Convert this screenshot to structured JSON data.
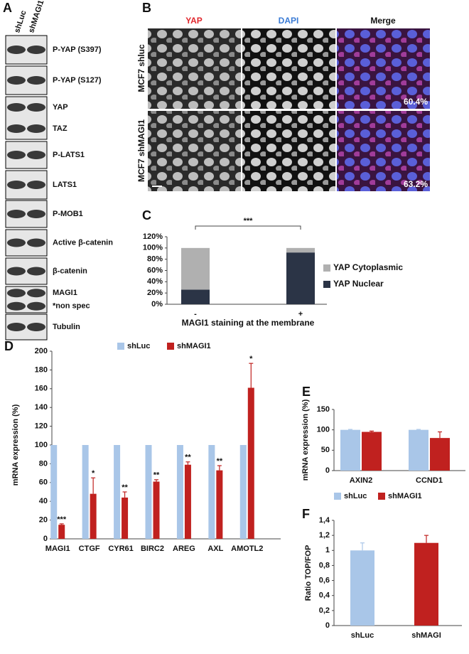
{
  "panel_letters": [
    "A",
    "B",
    "C",
    "D",
    "E",
    "F"
  ],
  "blot": {
    "lanes": [
      "shLuc",
      "shMAGI1"
    ],
    "boxes": [
      {
        "labels": [
          "P-YAP (S397)"
        ]
      },
      {
        "labels": [
          "P-YAP (S127)"
        ]
      },
      {
        "labels": [
          "YAP",
          "TAZ"
        ]
      },
      {
        "labels": [
          "P-LATS1"
        ]
      },
      {
        "labels": [
          "LATS1"
        ]
      },
      {
        "labels": [
          "P-MOB1"
        ]
      },
      {
        "labels": [
          "Active β-catenin"
        ]
      },
      {
        "labels": [
          "β-catenin"
        ]
      },
      {
        "labels": [
          "MAGI1",
          "*non spec"
        ]
      },
      {
        "labels": [
          "Tubulin"
        ]
      }
    ]
  },
  "microscopy": {
    "columns": [
      "YAP",
      "DAPI",
      "Merge"
    ],
    "rows": [
      "MCF7 shluc",
      "MCF7 shMAGI1"
    ],
    "percentages": [
      "60.4%",
      "63.2%"
    ]
  },
  "chart_data": [
    {
      "type": "stacked_bar",
      "categories": [
        "-",
        "+"
      ],
      "x_label": "MAGI1 staining at the membrane",
      "annotation": "***",
      "series": [
        {
          "name": "YAP Nuclear",
          "color": "#2b3446",
          "values": [
            26,
            92
          ]
        },
        {
          "name": "YAP Cytoplasmic",
          "color": "#b0b0b0",
          "values": [
            74,
            8
          ]
        }
      ],
      "ylim": [
        0,
        120
      ],
      "yticks": [
        {
          "value": 0,
          "label": "0%"
        },
        {
          "value": 20,
          "label": "20%"
        },
        {
          "value": 40,
          "label": "40%"
        },
        {
          "value": 60,
          "label": "60%"
        },
        {
          "value": 80,
          "label": "80%"
        },
        {
          "value": 100,
          "label": "100%"
        },
        {
          "value": 120,
          "label": "120%"
        }
      ]
    },
    {
      "type": "bar",
      "categories": [
        "MAGI1",
        "CTGF",
        "CYR61",
        "BIRC2",
        "AREG",
        "AXL",
        "AMOTL2"
      ],
      "y_label": "mRNA expression (%)",
      "annotations": [
        "***",
        "*",
        "**",
        "**",
        "**",
        "**",
        "*"
      ],
      "series": [
        {
          "name": "shLuc",
          "color": "#a9c6e8",
          "values": [
            100,
            100,
            100,
            100,
            100,
            100,
            100
          ]
        },
        {
          "name": "shMAGI1",
          "color": "#c0211f",
          "values": [
            15,
            48,
            44,
            61,
            79,
            73,
            161
          ],
          "errors": [
            1,
            17,
            6,
            2,
            3,
            5,
            26
          ]
        }
      ],
      "ylim": [
        0,
        200
      ],
      "yticks": [
        0,
        20,
        40,
        60,
        80,
        100,
        120,
        140,
        160,
        180,
        200
      ]
    },
    {
      "type": "bar",
      "categories": [
        "AXIN2",
        "CCND1"
      ],
      "y_label": "mRNA expression (%)",
      "series": [
        {
          "name": "shLuc",
          "color": "#a9c6e8",
          "values": [
            100,
            100
          ],
          "errors": [
            1,
            1
          ]
        },
        {
          "name": "shMAGI1",
          "color": "#c0211f",
          "values": [
            95,
            80
          ],
          "errors": [
            2,
            15
          ]
        }
      ],
      "ylim": [
        0,
        150
      ],
      "yticks": [
        0,
        50,
        100,
        150
      ]
    },
    {
      "type": "bar",
      "categories": [
        "shLuc",
        "shMAGI"
      ],
      "y_label": "Ratio TOP/FOP",
      "series": [
        {
          "colors": [
            "#a9c6e8",
            "#c0211f"
          ],
          "values": [
            1,
            1.1
          ],
          "errors": [
            0.1,
            0.1
          ]
        }
      ],
      "ylim": [
        0,
        1.4
      ],
      "yticks": [
        0,
        {
          "value": 0.2,
          "label": "0,2"
        },
        {
          "value": 0.4,
          "label": "0,4"
        },
        {
          "value": 0.6,
          "label": "0,6"
        },
        {
          "value": 0.8,
          "label": "0,8"
        },
        1,
        {
          "value": 1.2,
          "label": "1,2"
        },
        {
          "value": 1.4,
          "label": "1,4"
        }
      ]
    }
  ]
}
